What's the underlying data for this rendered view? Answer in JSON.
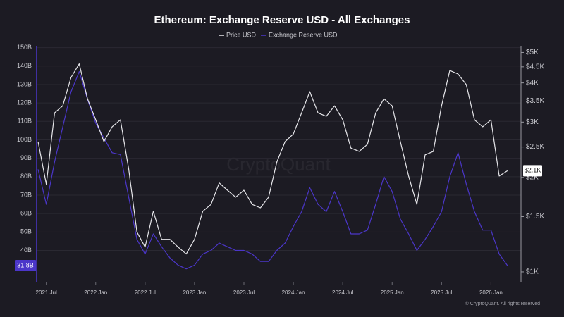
{
  "chart_data": {
    "type": "line",
    "title": "Ethereum: Exchange Reserve USD - All Exchanges",
    "watermark": "CryptoQuant",
    "credit": "© CryptoQuant. All rights reserved",
    "categories": [
      null,
      "2021 Jul",
      null,
      null,
      null,
      null,
      null,
      "2022 Jan",
      null,
      null,
      null,
      null,
      null,
      "2022 Jul",
      null,
      null,
      null,
      null,
      null,
      "2023 Jan",
      null,
      null,
      null,
      null,
      null,
      "2023 Jul",
      null,
      null,
      null,
      null,
      null,
      "2024 Jan",
      null,
      null,
      null,
      null,
      null,
      "2024 Jul",
      null,
      null,
      null,
      null,
      null,
      "2025 Jan",
      null,
      null,
      null,
      null,
      null,
      "2025 Jul",
      null,
      null,
      null,
      null,
      null,
      "2026 Jan",
      null,
      null
    ],
    "series": [
      {
        "name": "Price USD",
        "color": "#e6e6ea",
        "axis": "y2",
        "values": [
          2600,
          1900,
          3210,
          3380,
          4160,
          4600,
          3560,
          3050,
          2600,
          2900,
          3050,
          2130,
          1340,
          1200,
          1560,
          1270,
          1270,
          1200,
          1140,
          1270,
          1560,
          1640,
          1920,
          1820,
          1730,
          1820,
          1640,
          1600,
          1730,
          2240,
          2600,
          2750,
          3210,
          3750,
          3210,
          3130,
          3380,
          3050,
          2480,
          2420,
          2550,
          3210,
          3560,
          3380,
          2600,
          2020,
          1640,
          2360,
          2420,
          3380,
          4380,
          4270,
          3950,
          3050,
          2900,
          3050,
          2020,
          2100
        ],
        "value_labels": [
          null,
          null,
          null,
          null,
          null,
          null,
          null,
          null,
          null,
          null,
          null,
          null,
          null,
          null,
          null,
          null,
          null,
          null,
          null,
          null,
          null,
          null,
          null,
          null,
          null,
          null,
          null,
          null,
          null,
          null,
          null,
          null,
          null,
          null,
          null,
          null,
          null,
          null,
          null,
          null,
          null,
          null,
          null,
          null,
          null,
          null,
          null,
          null,
          null,
          null,
          null,
          null,
          null,
          null,
          null,
          null,
          null,
          "$2.1K"
        ]
      },
      {
        "name": "Exchange Reserve USD",
        "color": "#4b36c9",
        "values": [
          84,
          65,
          88,
          107,
          126,
          137,
          122,
          109,
          101,
          93,
          92,
          69,
          46,
          38,
          49,
          42,
          36,
          32,
          30,
          32,
          38,
          40,
          44,
          42,
          40,
          40,
          38,
          34,
          34,
          40,
          44,
          53,
          61,
          74,
          65,
          61,
          72,
          61,
          49,
          49,
          51,
          65,
          80,
          72,
          57,
          49,
          40,
          46,
          53,
          61,
          80,
          93,
          76,
          61,
          51,
          51,
          38,
          31.8
        ],
        "value_labels": [
          null,
          null,
          null,
          null,
          null,
          null,
          null,
          null,
          null,
          null,
          null,
          null,
          null,
          null,
          null,
          null,
          null,
          null,
          null,
          null,
          null,
          null,
          null,
          null,
          null,
          null,
          null,
          null,
          null,
          null,
          null,
          null,
          null,
          null,
          null,
          null,
          null,
          null,
          null,
          null,
          null,
          null,
          null,
          null,
          null,
          null,
          null,
          null,
          null,
          null,
          null,
          null,
          null,
          null,
          null,
          null,
          null,
          "31.8B"
        ]
      }
    ],
    "ylim": [
      23,
      151
    ],
    "yticks": [
      {
        "value": 40,
        "label": "40B"
      },
      {
        "value": 50,
        "label": "50B"
      },
      {
        "value": 60,
        "label": "60B"
      },
      {
        "value": 70,
        "label": "70B"
      },
      {
        "value": 80,
        "label": "80B"
      },
      {
        "value": 90,
        "label": "90B"
      },
      {
        "value": 100,
        "label": "100B"
      },
      {
        "value": 110,
        "label": "110B"
      },
      {
        "value": 120,
        "label": "120B"
      },
      {
        "value": 130,
        "label": "130B"
      },
      {
        "value": 140,
        "label": "140B"
      },
      {
        "value": 150,
        "label": "150B"
      }
    ],
    "y2lim": [
      930,
      5250
    ],
    "y2log": true,
    "y2ticks": [
      {
        "value": 1000,
        "label": "$1K"
      },
      {
        "value": 1500,
        "label": "$1.5K"
      },
      {
        "value": 2000,
        "label": "$2K"
      },
      {
        "value": 2500,
        "label": "$2.5K"
      },
      {
        "value": 3000,
        "label": "$3K"
      },
      {
        "value": 3500,
        "label": "$3.5K"
      },
      {
        "value": 4000,
        "label": "$4K"
      },
      {
        "value": 4500,
        "label": "$4.5K"
      },
      {
        "value": 5000,
        "label": "$5K"
      }
    ],
    "grid": true
  }
}
